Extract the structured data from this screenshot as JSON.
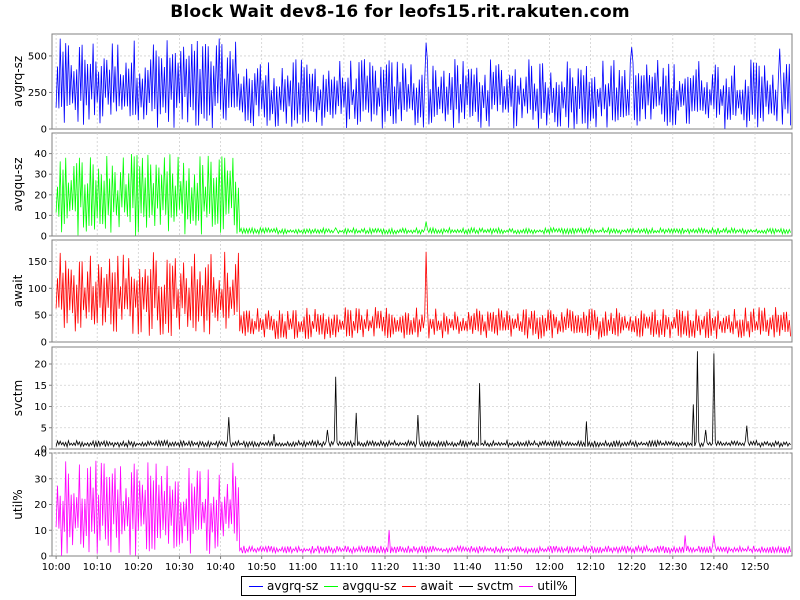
{
  "title": "Block Wait dev8-16 for leofs15.rit.rakuten.com",
  "chart_data": {
    "type": "line",
    "x_tick_labels": [
      "10:00",
      "10:10",
      "10:20",
      "10:30",
      "10:40",
      "10:50",
      "11:00",
      "11:10",
      "11:20",
      "11:30",
      "11:40",
      "11:50",
      "12:00",
      "12:10",
      "12:20",
      "12:30",
      "12:40",
      "12:50"
    ],
    "x_range": [
      "09:59",
      "12:59"
    ],
    "grid": true,
    "legend_position": "bottom",
    "regime_change": "10:45",
    "panels": [
      {
        "name": "avgrq-sz",
        "ylabel": "avgrq-sz",
        "color": "#0000ff",
        "ylim": [
          0,
          650
        ],
        "yticks": [
          0,
          250,
          500
        ],
        "samples_per_min": 3,
        "before_change": {
          "low": 5,
          "high": 620
        },
        "after_change": {
          "low": 0,
          "high": 480
        },
        "spikes": [
          {
            "x": "11:30",
            "value": 590
          },
          {
            "x": "12:20",
            "value": 560
          },
          {
            "x": "12:56",
            "value": 550
          }
        ]
      },
      {
        "name": "avgqu-sz",
        "ylabel": "avgqu-sz",
        "color": "#00ff00",
        "ylim": [
          0,
          50
        ],
        "yticks": [
          0,
          10,
          20,
          30,
          40
        ],
        "samples_per_min": 3,
        "before_change": {
          "low": 0,
          "high": 40
        },
        "after_change": {
          "low": 1,
          "high": 4
        },
        "spikes": [
          {
            "x": "11:30",
            "value": 7
          },
          {
            "x": "11:08",
            "value": 4
          }
        ]
      },
      {
        "name": "await",
        "ylabel": "await",
        "color": "#ff0000",
        "ylim": [
          0,
          190
        ],
        "yticks": [
          0,
          50,
          100,
          150
        ],
        "samples_per_min": 3,
        "before_change": {
          "low": 10,
          "high": 170
        },
        "after_change": {
          "low": 5,
          "high": 65
        },
        "spikes": [
          {
            "x": "11:30",
            "value": 168
          }
        ]
      },
      {
        "name": "svctm",
        "ylabel": "svctm",
        "color": "#000000",
        "ylim": [
          0,
          24
        ],
        "yticks": [
          0,
          5,
          10,
          15,
          20
        ],
        "samples_per_min": 3,
        "before_change": {
          "low": 0.5,
          "high": 2
        },
        "after_change": {
          "low": 0.5,
          "high": 2
        },
        "spikes": [
          {
            "x": "10:42",
            "value": 7.5
          },
          {
            "x": "10:53",
            "value": 3.5
          },
          {
            "x": "11:06",
            "value": 4.5
          },
          {
            "x": "11:08",
            "value": 17
          },
          {
            "x": "11:13",
            "value": 8.5
          },
          {
            "x": "11:28",
            "value": 8
          },
          {
            "x": "11:43",
            "value": 15.5
          },
          {
            "x": "12:09",
            "value": 6.5
          },
          {
            "x": "12:35",
            "value": 10.5
          },
          {
            "x": "12:36",
            "value": 23
          },
          {
            "x": "12:38",
            "value": 4.5
          },
          {
            "x": "12:40",
            "value": 22.5
          },
          {
            "x": "12:48",
            "value": 5.5
          }
        ]
      },
      {
        "name": "util%",
        "ylabel": "util%",
        "color": "#ff00ff",
        "ylim": [
          0,
          40
        ],
        "yticks": [
          0,
          10,
          20,
          30,
          40
        ],
        "samples_per_min": 3,
        "before_change": {
          "low": 0,
          "high": 37
        },
        "after_change": {
          "low": 1,
          "high": 4
        },
        "spikes": [
          {
            "x": "11:21",
            "value": 10
          },
          {
            "x": "12:33",
            "value": 8
          },
          {
            "x": "12:40",
            "value": 8
          }
        ]
      }
    ],
    "legend": [
      {
        "label": "avgrq-sz",
        "color": "#0000ff"
      },
      {
        "label": "avgqu-sz",
        "color": "#00ff00"
      },
      {
        "label": "await",
        "color": "#ff0000"
      },
      {
        "label": "svctm",
        "color": "#000000"
      },
      {
        "label": "util%",
        "color": "#ff00ff"
      }
    ]
  }
}
